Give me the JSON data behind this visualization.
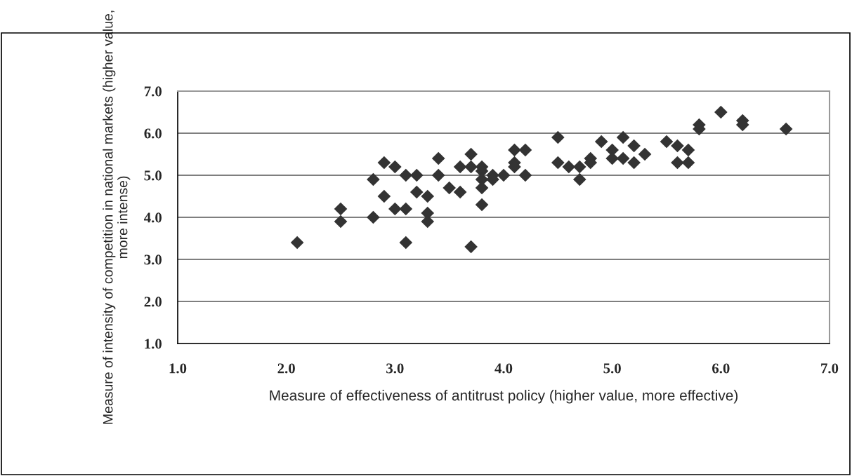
{
  "chart_data": {
    "type": "scatter",
    "xlabel": "Measure of effectiveness of antitrust policy (higher value, more effective)",
    "ylabel": "Measure of intensity of competition in national markets (higher value, more intense)",
    "x": [
      2.1,
      2.5,
      2.5,
      2.8,
      2.8,
      2.9,
      2.9,
      3.0,
      3.0,
      3.1,
      3.1,
      3.1,
      3.2,
      3.2,
      3.3,
      3.3,
      3.3,
      3.4,
      3.4,
      3.5,
      3.6,
      3.6,
      3.7,
      3.7,
      3.7,
      3.8,
      3.8,
      3.8,
      3.8,
      3.8,
      3.9,
      3.9,
      4.0,
      4.1,
      4.1,
      4.1,
      4.2,
      4.2,
      4.5,
      4.5,
      4.6,
      4.7,
      4.7,
      4.8,
      4.8,
      4.9,
      5.0,
      5.0,
      5.1,
      5.1,
      5.2,
      5.2,
      5.3,
      5.5,
      5.6,
      5.6,
      5.7,
      5.7,
      5.8,
      5.8,
      6.0,
      6.2,
      6.2,
      6.6
    ],
    "series": [
      {
        "color": "#333333",
        "values": [
          3.4,
          4.2,
          3.9,
          4.9,
          4.0,
          5.3,
          4.5,
          5.2,
          4.2,
          5.0,
          4.2,
          3.4,
          5.0,
          4.6,
          4.5,
          4.1,
          3.9,
          5.4,
          5.0,
          4.7,
          5.2,
          4.6,
          5.5,
          5.2,
          3.3,
          5.2,
          5.1,
          4.9,
          4.7,
          4.3,
          5.0,
          4.9,
          5.0,
          5.6,
          5.3,
          5.2,
          5.6,
          5.0,
          5.9,
          5.3,
          5.2,
          5.2,
          4.9,
          5.4,
          5.3,
          5.8,
          5.6,
          5.4,
          5.9,
          5.4,
          5.7,
          5.3,
          5.5,
          5.8,
          5.7,
          5.3,
          5.6,
          5.3,
          6.2,
          6.1,
          6.5,
          6.3,
          6.2,
          6.1
        ]
      }
    ],
    "xlim": [
      1.0,
      7.0
    ],
    "ylim": [
      1.0,
      7.0
    ],
    "xticks": [
      {
        "value": 1,
        "label": "1.0"
      },
      {
        "value": 2,
        "label": "2.0"
      },
      {
        "value": 3,
        "label": "3.0"
      },
      {
        "value": 4,
        "label": "4.0"
      },
      {
        "value": 5,
        "label": "5.0"
      },
      {
        "value": 6,
        "label": "6.0"
      },
      {
        "value": 7,
        "label": "7.0"
      }
    ],
    "yticks": [
      {
        "value": 1,
        "label": "1.0"
      },
      {
        "value": 2,
        "label": "2.0"
      },
      {
        "value": 3,
        "label": "3.0"
      },
      {
        "value": 4,
        "label": "4.0"
      },
      {
        "value": 5,
        "label": "5.0"
      },
      {
        "value": 6,
        "label": "6.0"
      },
      {
        "value": 7,
        "label": "7.0"
      }
    ],
    "grid": "y",
    "marker": "diamond"
  }
}
